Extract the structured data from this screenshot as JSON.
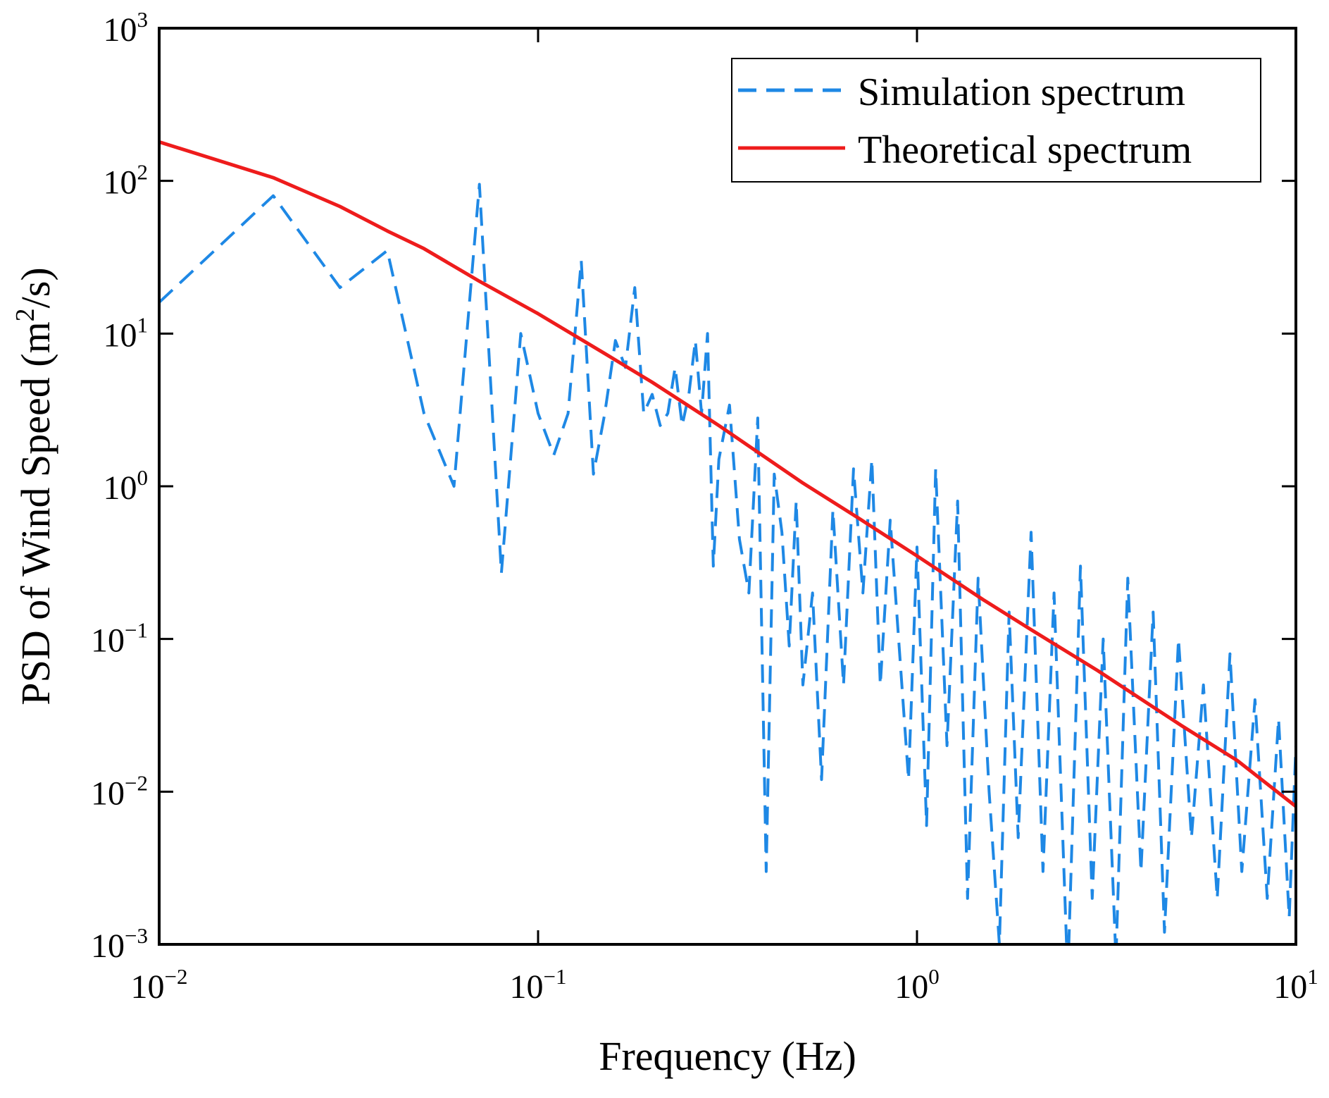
{
  "chart_data": {
    "type": "line",
    "title": "",
    "xlabel": "Frequency (Hz)",
    "ylabel_main": "PSD of Wind Speed (m",
    "ylabel_sup": "2",
    "ylabel_end": "/s)",
    "x_scale": "log",
    "y_scale": "log",
    "xlim": [
      0.01,
      10
    ],
    "ylim": [
      0.001,
      1000
    ],
    "grid": false,
    "legend_position": "top-right",
    "x_ticks": [
      {
        "value": 0.01,
        "base": "10",
        "exp": "−2"
      },
      {
        "value": 0.1,
        "base": "10",
        "exp": "−1"
      },
      {
        "value": 1,
        "base": "10",
        "exp": "0"
      },
      {
        "value": 10,
        "base": "10",
        "exp": "1"
      }
    ],
    "y_ticks": [
      {
        "value": 0.001,
        "base": "10",
        "exp": "−3"
      },
      {
        "value": 0.01,
        "base": "10",
        "exp": "−2"
      },
      {
        "value": 0.1,
        "base": "10",
        "exp": "−1"
      },
      {
        "value": 1,
        "base": "10",
        "exp": "0"
      },
      {
        "value": 10,
        "base": "10",
        "exp": "1"
      },
      {
        "value": 100,
        "base": "10",
        "exp": "2"
      },
      {
        "value": 1000,
        "base": "10",
        "exp": "3"
      }
    ],
    "series": [
      {
        "name": "Simulation spectrum",
        "style": "dashed",
        "color": "#1E88E5",
        "x": [
          0.01,
          0.02,
          0.03,
          0.04,
          0.05,
          0.06,
          0.07,
          0.08,
          0.09,
          0.1,
          0.11,
          0.12,
          0.13,
          0.14,
          0.15,
          0.16,
          0.17,
          0.18,
          0.19,
          0.2,
          0.21,
          0.22,
          0.23,
          0.24,
          0.25,
          0.26,
          0.27,
          0.28,
          0.29,
          0.3,
          0.32,
          0.34,
          0.36,
          0.38,
          0.4,
          0.42,
          0.44,
          0.46,
          0.48,
          0.5,
          0.53,
          0.56,
          0.6,
          0.64,
          0.68,
          0.72,
          0.76,
          0.8,
          0.85,
          0.9,
          0.95,
          1.0,
          1.06,
          1.12,
          1.2,
          1.28,
          1.36,
          1.45,
          1.55,
          1.65,
          1.75,
          1.85,
          2.0,
          2.15,
          2.3,
          2.5,
          2.7,
          2.9,
          3.1,
          3.35,
          3.6,
          3.9,
          4.2,
          4.5,
          4.9,
          5.3,
          5.7,
          6.2,
          6.7,
          7.2,
          7.8,
          8.4,
          9.0,
          9.6,
          10.0
        ],
        "y": [
          16,
          80,
          20,
          35,
          3,
          1.0,
          95,
          0.27,
          10,
          3,
          1.6,
          3,
          30,
          1.2,
          3,
          9,
          6,
          20,
          3,
          4,
          2.5,
          3,
          6,
          2.5,
          4,
          9,
          3,
          10,
          0.3,
          1.5,
          3.4,
          0.45,
          0.2,
          2.8,
          0.003,
          1.2,
          0.5,
          0.09,
          0.8,
          0.05,
          0.2,
          0.012,
          0.7,
          0.05,
          1.3,
          0.2,
          1.5,
          0.05,
          0.6,
          0.08,
          0.012,
          0.4,
          0.006,
          1.3,
          0.02,
          0.8,
          0.002,
          0.25,
          0.01,
          0.001,
          0.15,
          0.005,
          0.5,
          0.003,
          0.2,
          0.0006,
          0.3,
          0.002,
          0.1,
          0.0008,
          0.25,
          0.003,
          0.15,
          0.0012,
          0.1,
          0.005,
          0.05,
          0.002,
          0.08,
          0.003,
          0.04,
          0.002,
          0.03,
          0.0015,
          0.02
        ]
      },
      {
        "name": "Theoretical spectrum",
        "style": "solid",
        "color": "#EE1C1C",
        "x": [
          0.01,
          0.02,
          0.03,
          0.04,
          0.05,
          0.07,
          0.1,
          0.15,
          0.2,
          0.3,
          0.5,
          0.7,
          1.0,
          1.5,
          2.0,
          3.0,
          5.0,
          7.0,
          10.0
        ],
        "y": [
          180,
          105,
          68,
          47,
          36,
          22,
          13.5,
          7.4,
          4.8,
          2.5,
          1.05,
          0.62,
          0.35,
          0.18,
          0.115,
          0.062,
          0.027,
          0.016,
          0.008
        ]
      }
    ]
  }
}
